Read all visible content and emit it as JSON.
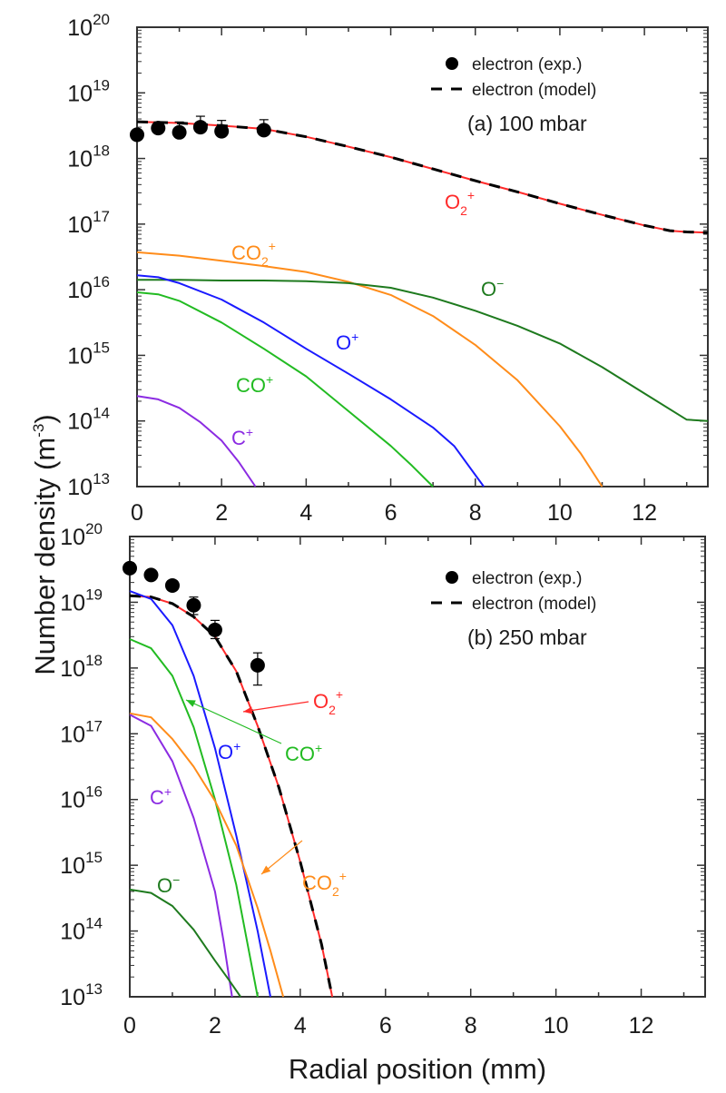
{
  "chart_data": {
    "type": "line",
    "xlabel": "Radial position (mm)",
    "ylabel": "Number density (m",
    "ylabel_unit_sup": "-3",
    "ylabel_close": ")",
    "yscale": "log",
    "x_ticks": [
      "0",
      "2",
      "4",
      "6",
      "8",
      "10",
      "12"
    ],
    "x_tick_values": [
      0,
      2,
      4,
      6,
      8,
      10,
      12
    ],
    "y_tick_exponents": [
      "20",
      "19",
      "18",
      "17",
      "16",
      "15",
      "14",
      "13"
    ],
    "y_tick_base": "10",
    "legend": {
      "exp_label": "electron (exp.)",
      "model_label": "electron (model)",
      "placement": "top-right"
    },
    "panels": [
      {
        "id": "a",
        "title": "(a) 100 mbar",
        "xlim": [
          0,
          13.5
        ],
        "ylim_log10": [
          13,
          20
        ],
        "experimental": {
          "name": "electron (exp.)",
          "x": [
            0,
            0.5,
            1.0,
            1.5,
            2.0,
            3.0
          ],
          "y": [
            2.3e+18,
            2.9e+18,
            2.5e+18,
            3e+18,
            2.6e+18,
            2.7e+18
          ],
          "err_upper": [
            0,
            3.6e+18,
            3.6e+18,
            4.4e+18,
            3.8e+18,
            3.9e+18
          ]
        },
        "series": [
          {
            "name": "O2+",
            "label_main": "O",
            "label_sub": "2",
            "label_sup": "+",
            "color": "#ff2a2a",
            "dashed_overlay": true,
            "x": [
              0,
              1,
              2,
              3,
              4,
              5,
              6,
              7,
              8,
              9,
              10,
              11,
              12,
              12.6,
              13,
              13.5
            ],
            "log10y": [
              18.56,
              18.54,
              18.5,
              18.45,
              18.33,
              18.18,
              18.02,
              17.84,
              17.66,
              17.49,
              17.31,
              17.14,
              16.98,
              16.9,
              16.88,
              16.87
            ]
          },
          {
            "name": "CO2+",
            "label_main": "CO",
            "label_sub": "2",
            "label_sup": "+",
            "color": "#ff8c1a",
            "x": [
              0,
              1,
              2,
              3,
              4,
              5,
              6,
              7,
              8,
              9,
              10,
              10.5,
              11
            ],
            "log10y": [
              16.57,
              16.52,
              16.44,
              16.36,
              16.27,
              16.12,
              15.92,
              15.6,
              15.16,
              14.62,
              13.92,
              13.5,
              13.0
            ]
          },
          {
            "name": "O-",
            "label_main": "O",
            "label_sub": "",
            "label_sup": "−",
            "color": "#1e7a1e",
            "x": [
              0,
              1,
              2,
              3,
              4,
              5,
              6,
              7,
              8,
              9,
              10,
              11,
              12,
              13,
              13.5
            ],
            "log10y": [
              16.15,
              16.15,
              16.14,
              16.14,
              16.13,
              16.1,
              16.03,
              15.88,
              15.68,
              15.45,
              15.18,
              14.82,
              14.42,
              14.02,
              14.0
            ]
          },
          {
            "name": "O+",
            "label_main": "O",
            "label_sub": "",
            "label_sup": "+",
            "color": "#1a1aff",
            "x": [
              0,
              0.5,
              1,
              2,
              3,
              4,
              5,
              6,
              7,
              7.5,
              8.2
            ],
            "log10y": [
              16.22,
              16.19,
              16.1,
              15.85,
              15.5,
              15.1,
              14.72,
              14.33,
              13.9,
              13.62,
              13.0
            ]
          },
          {
            "name": "CO+",
            "label_main": "CO",
            "label_sub": "",
            "label_sup": "+",
            "color": "#22bb22",
            "x": [
              0,
              0.5,
              1,
              2,
              3,
              4,
              5,
              6,
              6.5,
              7.0
            ],
            "log10y": [
              15.96,
              15.93,
              15.83,
              15.5,
              15.1,
              14.68,
              14.15,
              13.62,
              13.32,
              13.0
            ]
          },
          {
            "name": "C+",
            "label_main": "C",
            "label_sub": "",
            "label_sup": "+",
            "color": "#8b2be2",
            "x": [
              0,
              0.5,
              1,
              1.5,
              2,
              2.4,
              2.8
            ],
            "log10y": [
              14.38,
              14.33,
              14.2,
              13.98,
              13.7,
              13.38,
              13.0
            ]
          }
        ]
      },
      {
        "id": "b",
        "title": "(b) 250 mbar",
        "xlim": [
          0,
          13.5
        ],
        "ylim_log10": [
          13,
          20
        ],
        "experimental": {
          "name": "electron (exp.)",
          "x": [
            0,
            0.5,
            1.0,
            1.5,
            2.0,
            3.0
          ],
          "y": [
            3.3e+19,
            2.6e+19,
            1.8e+19,
            9e+18,
            3.8e+18,
            1.1e+18
          ],
          "err_lower": [
            0,
            0,
            0,
            6.5e+18,
            2.8e+18,
            5.5e+17
          ],
          "err_upper": [
            0,
            0,
            0,
            1.2e+19,
            5.3e+18,
            1.7e+18
          ]
        },
        "series": [
          {
            "name": "O2+",
            "label_main": "O",
            "label_sub": "2",
            "label_sup": "+",
            "color": "#ff2a2a",
            "dashed_overlay": true,
            "x": [
              0,
              0.5,
              1,
              1.5,
              2,
              2.5,
              3,
              3.5,
              4,
              4.5,
              4.75
            ],
            "log10y": [
              19.1,
              19.08,
              18.98,
              18.78,
              18.48,
              17.95,
              17.12,
              16.18,
              15.05,
              13.8,
              13.0
            ]
          },
          {
            "name": "O+",
            "label_main": "O",
            "label_sub": "",
            "label_sup": "+",
            "color": "#1a1aff",
            "x": [
              0,
              0.5,
              1,
              1.5,
              2,
              2.5,
              3,
              3.3
            ],
            "log10y": [
              19.17,
              19.05,
              18.65,
              17.88,
              16.78,
              15.45,
              14.0,
              13.0
            ]
          },
          {
            "name": "CO+",
            "label_main": "CO",
            "label_sub": "",
            "label_sup": "+",
            "color": "#22bb22",
            "x": [
              0,
              0.5,
              1,
              1.5,
              2,
              2.5,
              3.0
            ],
            "log10y": [
              18.44,
              18.3,
              17.88,
              17.1,
              16.0,
              14.7,
              13.0
            ]
          },
          {
            "name": "CO2+",
            "label_main": "CO",
            "label_sub": "2",
            "label_sup": "+",
            "color": "#ff8c1a",
            "x": [
              0,
              0.5,
              1,
              1.5,
              2,
              2.5,
              3,
              3.3,
              3.6
            ],
            "log10y": [
              17.31,
              17.25,
              16.92,
              16.5,
              15.98,
              15.3,
              14.35,
              13.7,
              13.0
            ]
          },
          {
            "name": "C+",
            "label_main": "C",
            "label_sub": "",
            "label_sup": "+",
            "color": "#8b2be2",
            "x": [
              0,
              0.5,
              1,
              1.5,
              2,
              2.2,
              2.4
            ],
            "log10y": [
              17.29,
              17.12,
              16.58,
              15.72,
              14.6,
              13.85,
              13.0
            ]
          },
          {
            "name": "O-",
            "label_main": "O",
            "label_sub": "",
            "label_sup": "−",
            "color": "#1e7a1e",
            "x": [
              0,
              0.5,
              1,
              1.5,
              2,
              2.3,
              2.6
            ],
            "log10y": [
              14.63,
              14.58,
              14.38,
              14.02,
              13.55,
              13.28,
              13.0
            ]
          }
        ]
      }
    ]
  }
}
